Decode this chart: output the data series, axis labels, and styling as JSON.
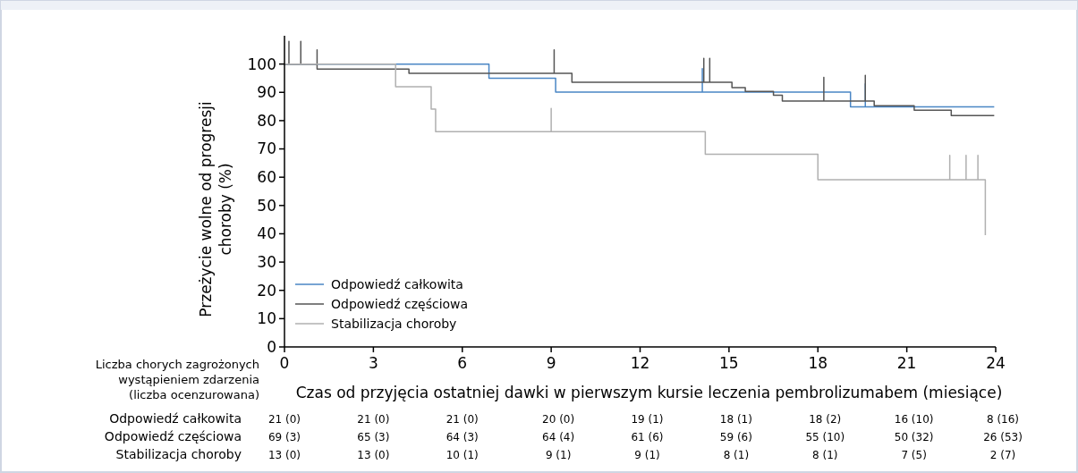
{
  "chart_data": {
    "type": "step",
    "xlabel": "Czas od przyjęcia ostatniej dawki w pierwszym kursie leczenia pembrolizumabem (miesiące)",
    "ylabel": "Przeżycie wolne od progresji choroby (%)",
    "xlim": [
      0,
      24
    ],
    "xticks": [
      0,
      3,
      6,
      9,
      12,
      15,
      18,
      21,
      24
    ],
    "ylim": [
      0,
      110
    ],
    "yticks": [
      0,
      10,
      20,
      30,
      40,
      50,
      60,
      70,
      80,
      90,
      100
    ],
    "grid": false,
    "legend": "bottom left",
    "line_style": "solid",
    "series": [
      {
        "name": "Odpowiedź całkowita",
        "color": "#4a86c5",
        "x": [
          0,
          6.9,
          9.15,
          14.1,
          14.1,
          14.1,
          19.1,
          19.6,
          19.6,
          19.6,
          23.95
        ],
        "values": [
          100,
          95,
          90.1,
          90.1,
          98.4,
          90.1,
          84.9,
          84.9,
          93,
          84.9,
          84.9
        ]
      },
      {
        "name": "Odpowiedź częściowa",
        "color": "#555555",
        "x": [
          0,
          0.15,
          0.15,
          0.15,
          0.55,
          0.55,
          0.55,
          1.1,
          1.1,
          1.1,
          4.2,
          9.1,
          9.1,
          9.1,
          9.7,
          14.15,
          14.15,
          14.15,
          14.35,
          14.35,
          14.35,
          15.1,
          15.55,
          16.5,
          16.8,
          18.2,
          18.2,
          18.2,
          19.6,
          19.6,
          19.6,
          19.9,
          21.25,
          22.5,
          23.95
        ],
        "values": [
          100,
          100,
          108,
          100,
          100,
          108,
          100,
          100,
          105,
          98.2,
          96.7,
          96.7,
          105,
          96.7,
          93.6,
          93.6,
          102,
          93.6,
          93.6,
          102,
          93.6,
          91.7,
          90.3,
          89,
          86.9,
          86.9,
          95.3,
          86.9,
          86.9,
          96,
          86.9,
          85.3,
          83.7,
          81.8,
          81.8
        ]
      },
      {
        "name": "Stabilizacja choroby",
        "color": "#b0b0b0",
        "x": [
          0,
          3.75,
          4.95,
          5.1,
          9,
          9,
          9,
          14.2,
          18,
          22.45,
          22.45,
          22.45,
          23,
          23,
          23,
          23.4,
          23.4,
          23.4,
          23.65,
          23.65
        ],
        "values": [
          100,
          92,
          84.1,
          76.1,
          76.1,
          84.3,
          76.1,
          68.1,
          59.1,
          59.1,
          67.7,
          59.1,
          59.1,
          67.7,
          59.1,
          59.1,
          67.7,
          59.1,
          59.1,
          39.5
        ]
      }
    ],
    "annotations": [
      "Liczba chorych zagrożonych",
      "wystąpieniem zdarzenia",
      "(liczba ocenzurowana)",
      "Odpowiedź całkowita",
      "21 (0)",
      "21 (0)",
      "21 (0)",
      "20 (0)",
      "19 (1)",
      "18 (1)",
      "18 (2)",
      "16 (10)",
      "8 (16)",
      "Odpowiedź częściowa",
      "69 (3)",
      "65 (3)",
      "64 (3)",
      "64 (4)",
      "61 (6)",
      "59 (6)",
      "55 (10)",
      "50 (32)",
      "26 (53)",
      "Stabilizacja choroby",
      "13 (0)",
      "13 (0)",
      "10 (1)",
      "9 (1)",
      "9 (1)",
      "8 (1)",
      "8 (1)",
      "7 (5)",
      "2 (7)"
    ]
  }
}
